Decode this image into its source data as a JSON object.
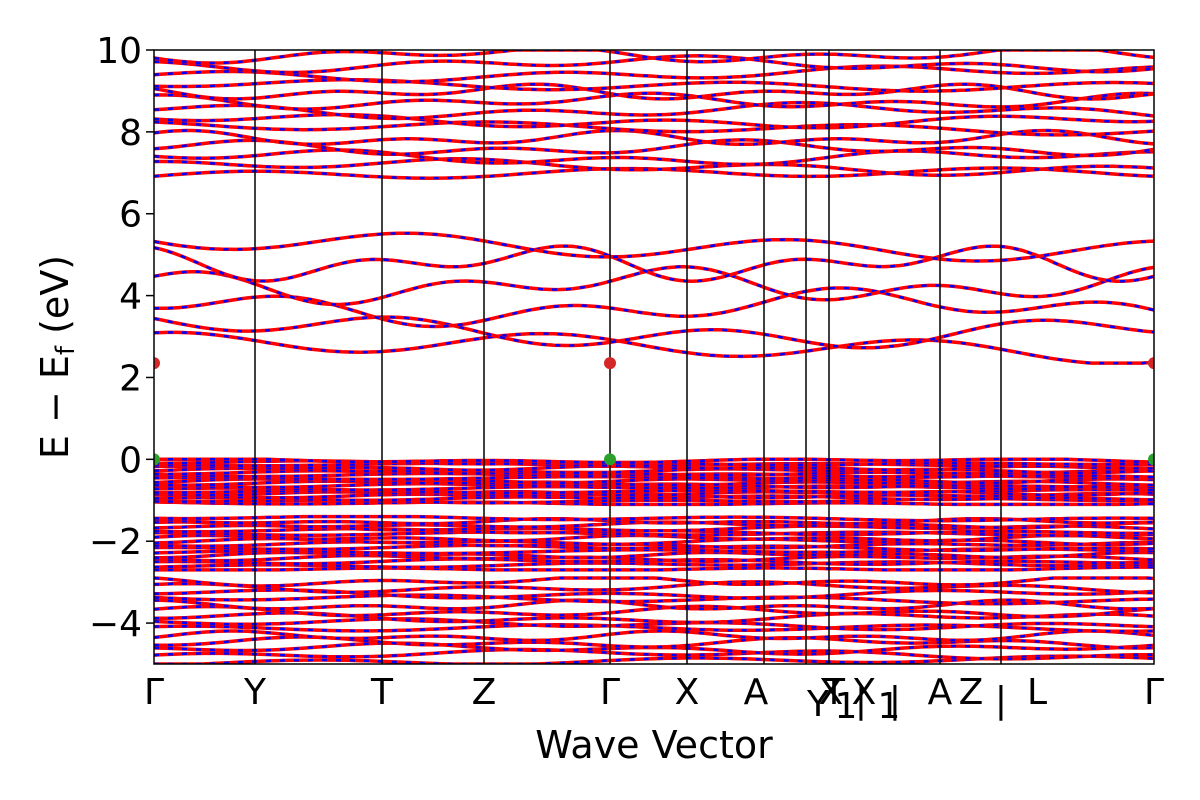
{
  "chart_data": {
    "type": "line",
    "title": "",
    "xlabel": "Wave Vector",
    "ylabel": "E − E",
    "ylabel_sub": "f",
    "ylabel_unit": " (eV)",
    "ylim": [
      -5,
      10
    ],
    "yticks": [
      -4,
      -2,
      0,
      2,
      4,
      6,
      8,
      10
    ],
    "ytick_labels": [
      "−4",
      "−2",
      "0",
      "2",
      "4",
      "6",
      "8",
      "10"
    ],
    "x_range": [
      0,
      1
    ],
    "high_symmetry_points": [
      {
        "label": "Γ",
        "x": 0.0
      },
      {
        "label": "Y",
        "x": 0.101
      },
      {
        "label": "T",
        "x": 0.228
      },
      {
        "label": "Z",
        "x": 0.33
      },
      {
        "label": "Γ",
        "x": 0.456
      },
      {
        "label": "X",
        "x": 0.533
      },
      {
        "label": "A",
        "x": 0.61
      },
      {
        "label": "Y",
        "x": 0.652
      },
      {
        "label": "X",
        "x": 0.652
      },
      {
        "label": "1",
        "x": 0.652
      },
      {
        "label": "|",
        "x": 0.652
      },
      {
        "label": "1",
        "x": 0.675
      },
      {
        "label": "|",
        "x": 0.675
      },
      {
        "label": "T",
        "x": 0.675
      },
      {
        "label": "X",
        "x": 0.71
      },
      {
        "label": "A",
        "x": 0.786
      },
      {
        "label": "Z",
        "x": 0.817
      },
      {
        "label": "|",
        "x": 0.847
      },
      {
        "label": "L",
        "x": 0.883
      },
      {
        "label": "Γ",
        "x": 1.0
      }
    ],
    "vertical_lines_x": [
      0.101,
      0.228,
      0.33,
      0.456,
      0.533,
      0.61,
      0.652,
      0.675,
      0.786,
      0.847
    ],
    "band_extrema": [
      {
        "name": "CBM",
        "x": 0.0,
        "y": 2.35,
        "color": "#d62728"
      },
      {
        "name": "CBM",
        "x": 0.456,
        "y": 2.35,
        "color": "#d62728"
      },
      {
        "name": "CBM",
        "x": 1.0,
        "y": 2.35,
        "color": "#d62728"
      },
      {
        "name": "VBM",
        "x": 0.0,
        "y": 0.0,
        "color": "#2ca02c"
      },
      {
        "name": "VBM",
        "x": 0.456,
        "y": 0.0,
        "color": "#2ca02c"
      },
      {
        "name": "VBM",
        "x": 1.0,
        "y": 0.0,
        "color": "#2ca02c"
      }
    ],
    "band_regions": {
      "conduction_upper": {
        "ymin": 6.8,
        "ymax": 10.0,
        "count": 14
      },
      "conduction_lower": {
        "ymin": 2.35,
        "ymax": 5.6,
        "count": 6
      },
      "valence_top": {
        "ymin": -1.1,
        "ymax": 0.0,
        "count": 18
      },
      "valence_mid": {
        "ymin": -2.7,
        "ymax": -1.4,
        "count": 16
      },
      "valence_low": {
        "ymin": -5.0,
        "ymax": -2.9,
        "count": 14
      }
    },
    "colors": {
      "spin_up": "#ff0000",
      "spin_down": "#0000ff",
      "vline": "#000000"
    },
    "grid": false,
    "legend": "none"
  }
}
